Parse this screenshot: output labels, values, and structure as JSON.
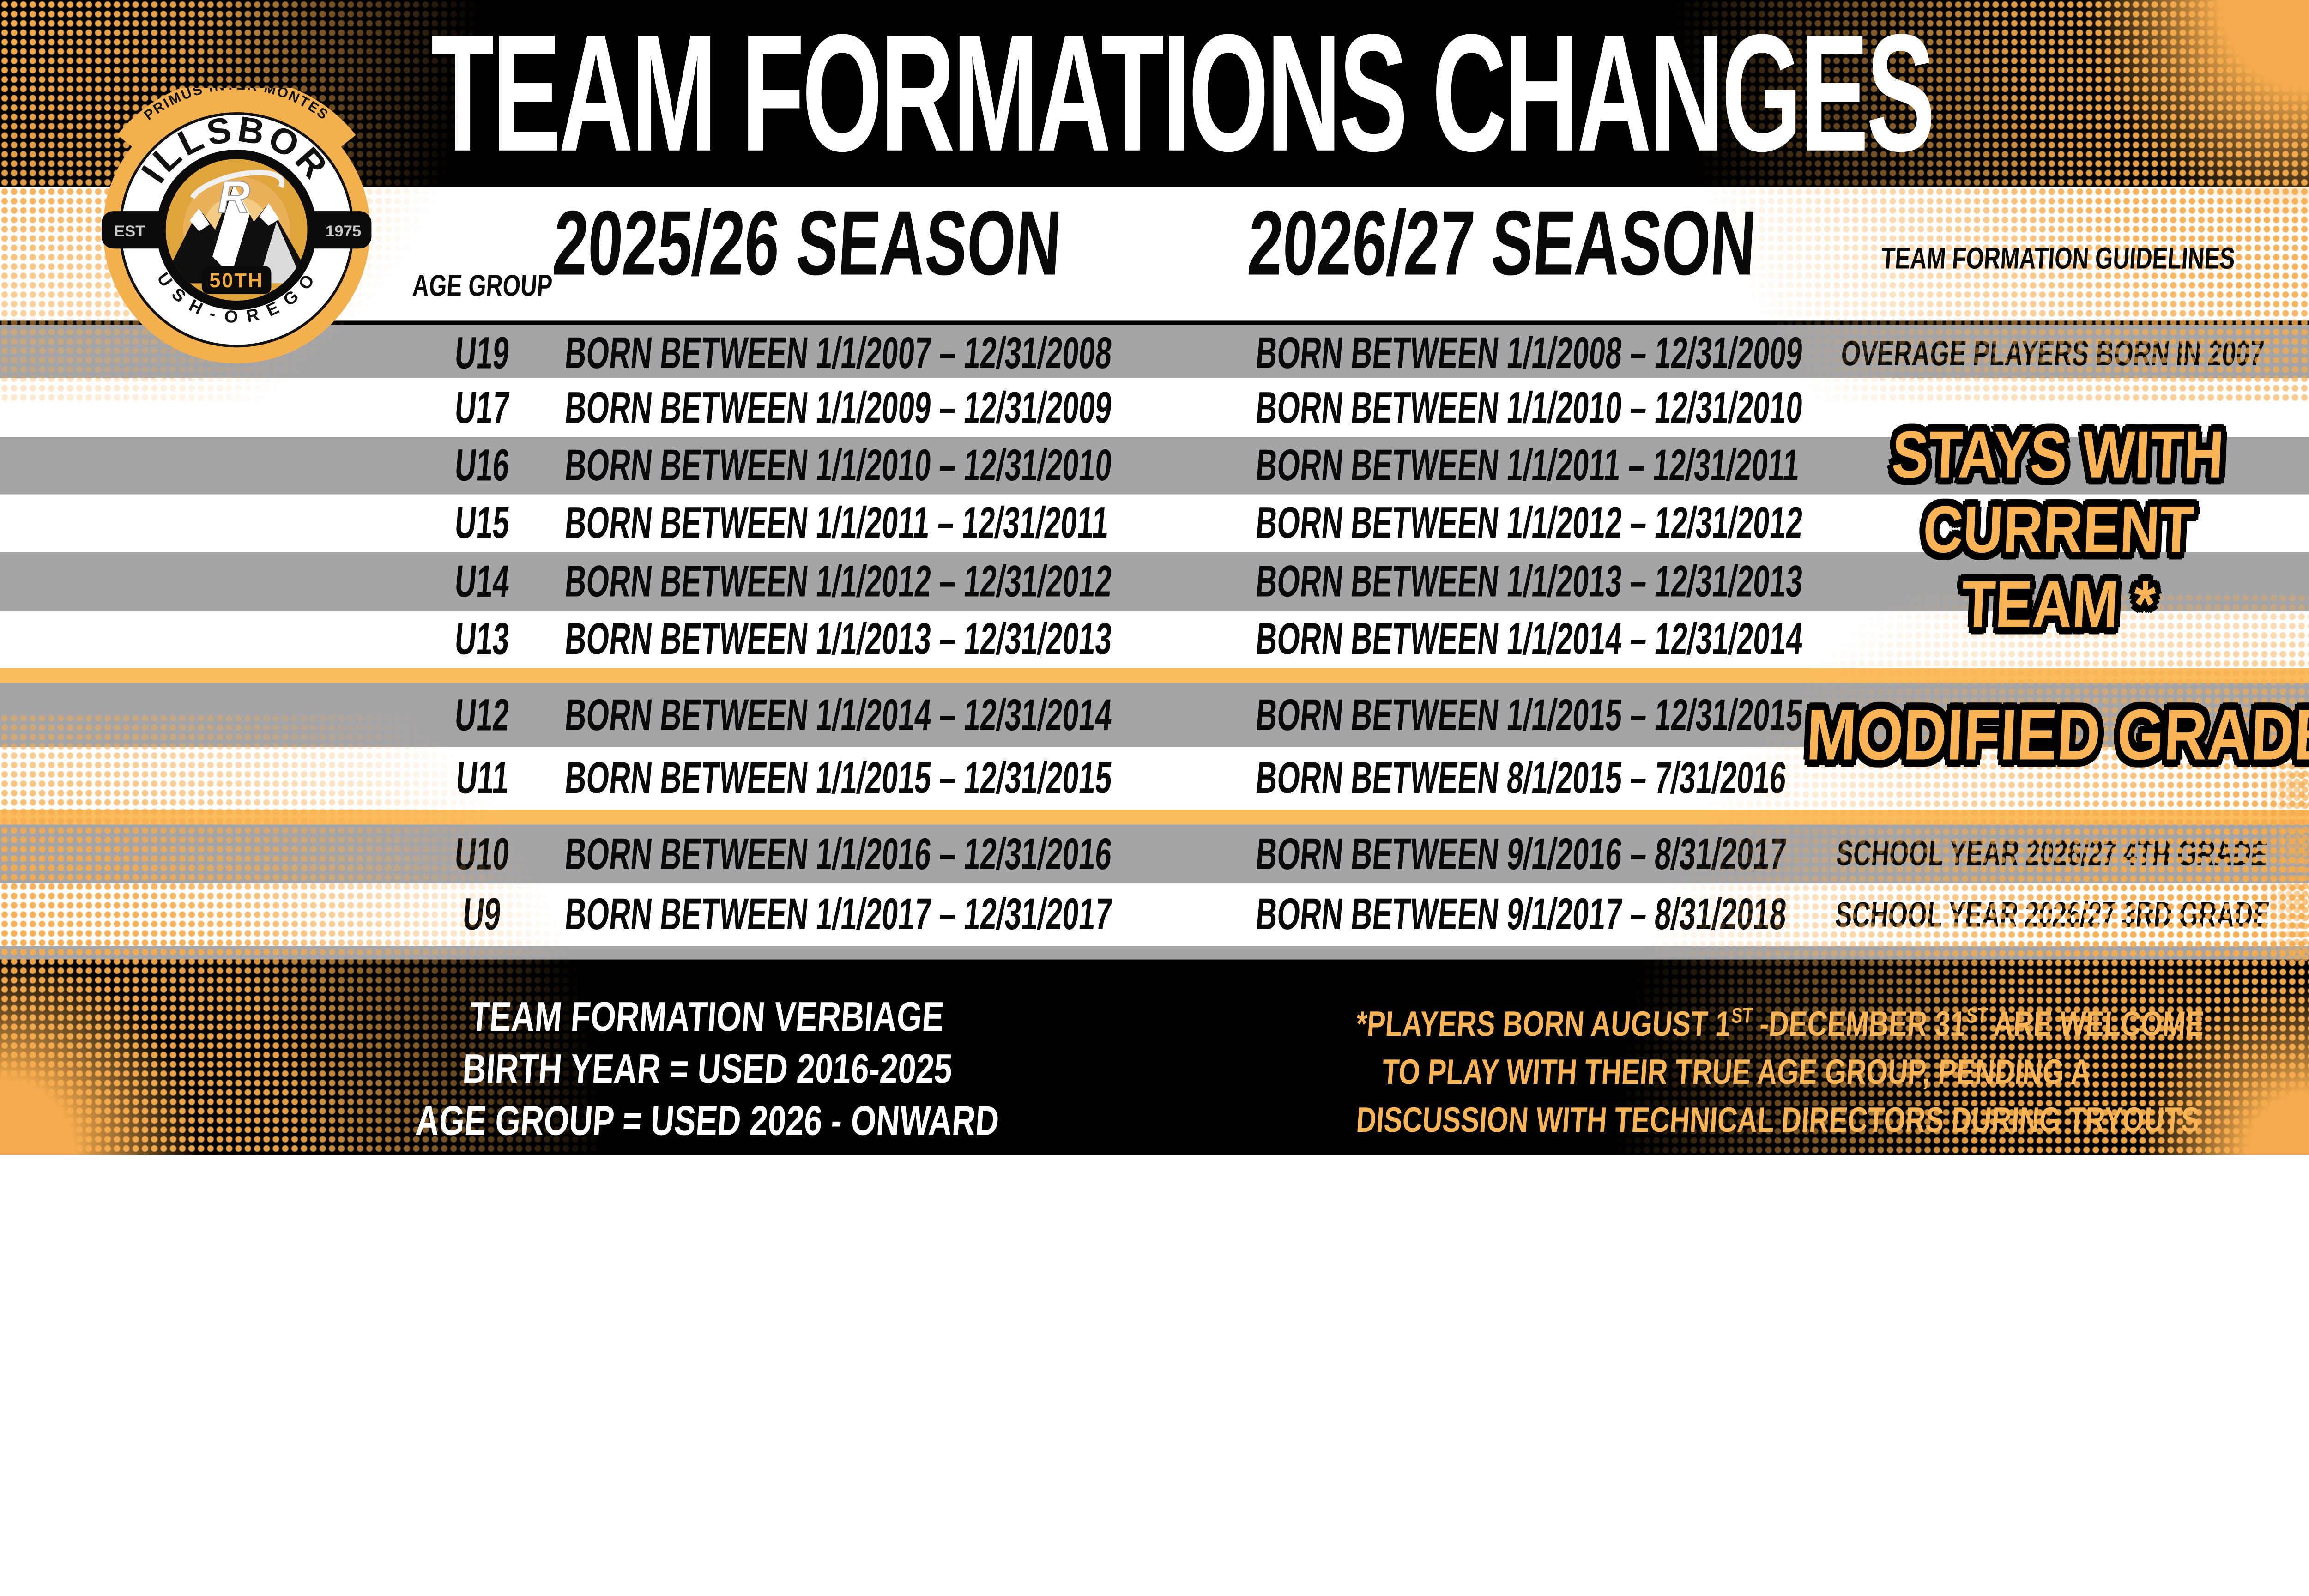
{
  "title": "TEAM FORMATIONS CHANGES",
  "logo": {
    "motto": "PRIMUS INTER MONTES",
    "name": "HILLSBORO",
    "est": "EST",
    "year": "1975",
    "anniversary": "50TH",
    "region": "R U S H  -  O R E G O N",
    "r_mark": "R"
  },
  "table": {
    "headers": {
      "age_group": "AGE GROUP",
      "season1": "2025/26 SEASON",
      "season2": "2026/27 SEASON",
      "guidelines": "TEAM FORMATION GUIDELINES"
    },
    "rows": [
      {
        "age": "U19",
        "s1": "BORN BETWEEN 1/1/2007 – 12/31/2008",
        "s2": "BORN BETWEEN 1/1/2008 – 12/31/2009",
        "note": "OVERAGE PLAYERS BORN IN 2007"
      },
      {
        "age": "U17",
        "s1": "BORN BETWEEN 1/1/2009 – 12/31/2009",
        "s2": "BORN BETWEEN 1/1/2010 – 12/31/2010",
        "note": ""
      },
      {
        "age": "U16",
        "s1": "BORN BETWEEN 1/1/2010 – 12/31/2010",
        "s2": "BORN BETWEEN 1/1/2011 – 12/31/2011",
        "note": ""
      },
      {
        "age": "U15",
        "s1": "BORN BETWEEN 1/1/2011 – 12/31/2011",
        "s2": "BORN BETWEEN 1/1/2012 – 12/31/2012",
        "note": ""
      },
      {
        "age": "U14",
        "s1": "BORN BETWEEN 1/1/2012 – 12/31/2012",
        "s2": "BORN BETWEEN 1/1/2013 – 12/31/2013",
        "note": ""
      },
      {
        "age": "U13",
        "s1": "BORN BETWEEN 1/1/2013 – 12/31/2013",
        "s2": "BORN BETWEEN 1/1/2014 – 12/31/2014",
        "note": ""
      },
      {
        "age": "U12",
        "s1": "BORN BETWEEN 1/1/2014 – 12/31/2014",
        "s2": "BORN BETWEEN 1/1/2015 – 12/31/2015",
        "note": ""
      },
      {
        "age": "U11",
        "s1": "BORN BETWEEN 1/1/2015 – 12/31/2015",
        "s2": "BORN BETWEEN 8/1/2015 – 7/31/2016",
        "note": ""
      },
      {
        "age": "U10",
        "s1": "BORN BETWEEN 1/1/2016 – 12/31/2016",
        "s2": "BORN BETWEEN 9/1/2016 – 8/31/2017",
        "note": "SCHOOL YEAR 2026/27 4TH GRADE"
      },
      {
        "age": "U9",
        "s1": "BORN BETWEEN 1/1/2017 – 12/31/2017",
        "s2": "BORN BETWEEN 9/1/2017 – 8/31/2018",
        "note": "SCHOOL YEAR 2026/27 3RD GRADE"
      }
    ],
    "badges": {
      "stays_line1": "STAYS WITH",
      "stays_line2": "CURRENT",
      "stays_line3": "TEAM *",
      "modified": "MODIFIED GRADE"
    }
  },
  "footer": {
    "left_line1": "TEAM FORMATION VERBIAGE",
    "left_line2": "BIRTH YEAR = USED 2016-2025",
    "left_line3": "AGE GROUP = USED 2026 - ONWARD",
    "right_l1a": "*PLAYERS BORN AUGUST 1",
    "right_l1sup1": "ST",
    "right_l1b": " -DECEMBER 31",
    "right_l1sup2": "ST",
    "right_l1c": " ARE WELCOME",
    "right_l2": "TO PLAY WITH THEIR TRUE AGE GROUP, PENDING A",
    "right_l3": "DISCUSSION WITH TECHNICAL DIRECTORS DURING TRYOUTS"
  },
  "colors": {
    "accent_orange": "#F8B455",
    "separator_orange": "#FBBC5D",
    "row_gray": "#A5A5A7",
    "background_black": "#000000",
    "dot_orange": "#F5AC4E"
  }
}
